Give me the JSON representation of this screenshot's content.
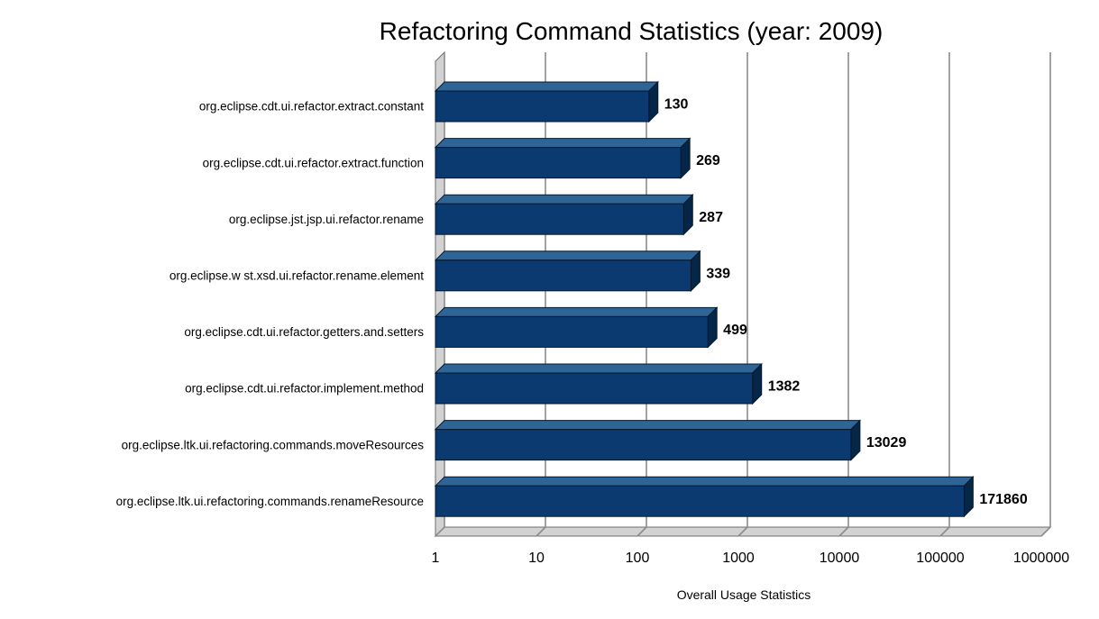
{
  "chart_data": {
    "type": "bar",
    "orientation": "horizontal",
    "style": "3d",
    "title": "Refactoring Command Statistics (year: 2009)",
    "xlabel": "Overall Usage Statistics",
    "ylabel": "",
    "x_scale": "log",
    "x_range": [
      1,
      1000000
    ],
    "x_ticks": [
      "1",
      "10",
      "100",
      "1000",
      "10000",
      "100000",
      "1000000"
    ],
    "categories": [
      "org.eclipse.cdt.ui.refactor.extract.constant",
      "org.eclipse.cdt.ui.refactor.extract.function",
      "org.eclipse.jst.jsp.ui.refactor.rename",
      "org.eclipse.w st.xsd.ui.refactor.rename.element",
      "org.eclipse.cdt.ui.refactor.getters.and.setters",
      "org.eclipse.cdt.ui.refactor.implement.method",
      "org.eclipse.ltk.ui.refactoring.commands.moveResources",
      "org.eclipse.ltk.ui.refactoring.commands.renameResource"
    ],
    "values": [
      130,
      269,
      287,
      339,
      499,
      1382,
      13029,
      171860
    ],
    "legend": "none",
    "grid": "vertical",
    "colors": {
      "bar_front": "#0a3a70",
      "bar_top": "#2f6496",
      "bar_side": "#062647",
      "bar_outline": "#03182f",
      "grid_line": "#8c8c8c",
      "wall_fill": "#d2d2d2",
      "wall_edge": "#6f6f6f",
      "background": "#ffffff",
      "text": "#000000"
    }
  }
}
